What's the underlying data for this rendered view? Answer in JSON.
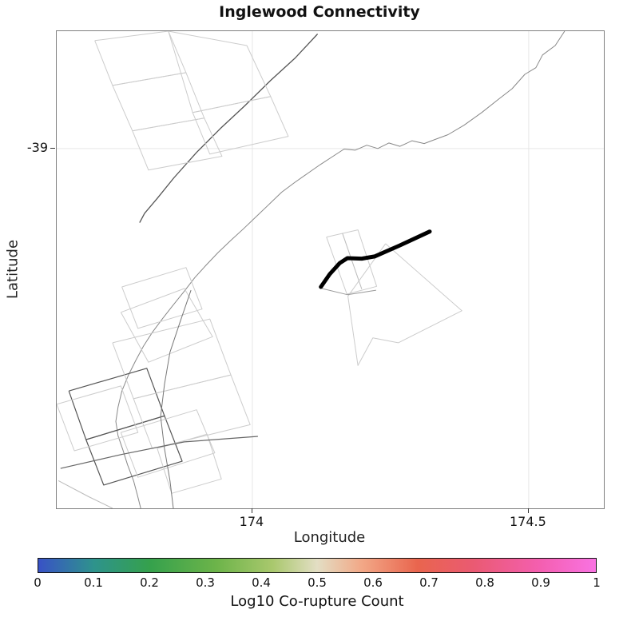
{
  "chart_data": {
    "type": "line",
    "title": "Inglewood Connectivity",
    "xlabel": "Longitude",
    "ylabel": "Latitude",
    "xlim": [
      173.646,
      174.636
    ],
    "ylim": [
      -39.65,
      -38.788
    ],
    "grid": true,
    "xticks": [
      {
        "value": 174,
        "label": "174"
      },
      {
        "value": 174.5,
        "label": "174.5"
      }
    ],
    "yticks": [
      {
        "value": -39,
        "label": "-39"
      }
    ],
    "traces": [
      {
        "name": "fault-trace-northwest",
        "color": "#555555",
        "width": 1.3,
        "points": [
          [
            174.118,
            -38.793
          ],
          [
            174.077,
            -38.837
          ],
          [
            174.033,
            -38.877
          ],
          [
            173.986,
            -38.923
          ],
          [
            173.942,
            -38.964
          ],
          [
            173.899,
            -39.007
          ],
          [
            173.858,
            -39.053
          ],
          [
            173.828,
            -39.09
          ],
          [
            173.805,
            -39.117
          ],
          [
            173.796,
            -39.134
          ]
        ]
      },
      {
        "name": "fault-outline",
        "color": "#cccccc",
        "width": 1,
        "points": [
          [
            173.715,
            -38.805
          ],
          [
            173.848,
            -38.788
          ],
          [
            173.88,
            -38.863
          ],
          [
            173.747,
            -38.886
          ],
          [
            173.715,
            -38.805
          ]
        ]
      },
      {
        "name": "fault-outline",
        "color": "#cccccc",
        "width": 1,
        "points": [
          [
            173.747,
            -38.886
          ],
          [
            173.88,
            -38.863
          ],
          [
            173.913,
            -38.945
          ],
          [
            173.783,
            -38.968
          ],
          [
            173.747,
            -38.886
          ]
        ]
      },
      {
        "name": "fault-outline",
        "color": "#cccccc",
        "width": 1,
        "points": [
          [
            173.783,
            -38.968
          ],
          [
            173.913,
            -38.945
          ],
          [
            173.945,
            -39.014
          ],
          [
            173.812,
            -39.039
          ],
          [
            173.783,
            -38.968
          ]
        ]
      },
      {
        "name": "fault-outline",
        "color": "#cccccc",
        "width": 1,
        "points": [
          [
            173.848,
            -38.788
          ],
          [
            173.99,
            -38.814
          ],
          [
            174.033,
            -38.906
          ],
          [
            173.892,
            -38.935
          ],
          [
            173.848,
            -38.788
          ]
        ]
      },
      {
        "name": "fault-outline",
        "color": "#cccccc",
        "width": 1,
        "points": [
          [
            173.892,
            -38.935
          ],
          [
            174.033,
            -38.906
          ],
          [
            174.065,
            -38.978
          ],
          [
            173.923,
            -39.01
          ],
          [
            173.892,
            -38.935
          ]
        ]
      },
      {
        "name": "fault-trace-long",
        "color": "#888888",
        "width": 1,
        "points": [
          [
            174.565,
            -38.788
          ],
          [
            174.548,
            -38.814
          ],
          [
            174.525,
            -38.831
          ],
          [
            174.513,
            -38.854
          ],
          [
            174.493,
            -38.866
          ],
          [
            174.47,
            -38.892
          ],
          [
            174.444,
            -38.912
          ],
          [
            174.415,
            -38.935
          ],
          [
            174.383,
            -38.958
          ],
          [
            174.354,
            -38.975
          ],
          [
            174.332,
            -38.983
          ],
          [
            174.311,
            -38.991
          ],
          [
            174.289,
            -38.986
          ],
          [
            174.267,
            -38.996
          ],
          [
            174.247,
            -38.99
          ],
          [
            174.227,
            -39.0
          ],
          [
            174.207,
            -38.994
          ],
          [
            174.186,
            -39.003
          ],
          [
            174.166,
            -39.001
          ],
          [
            174.146,
            -39.014
          ],
          [
            174.123,
            -39.029
          ],
          [
            174.1,
            -39.045
          ],
          [
            174.077,
            -39.061
          ],
          [
            174.053,
            -39.079
          ],
          [
            174.03,
            -39.101
          ],
          [
            174.007,
            -39.123
          ],
          [
            173.984,
            -39.145
          ],
          [
            173.961,
            -39.166
          ],
          [
            173.938,
            -39.188
          ],
          [
            173.916,
            -39.211
          ],
          [
            173.896,
            -39.233
          ],
          [
            173.876,
            -39.259
          ],
          [
            173.855,
            -39.285
          ],
          [
            173.837,
            -39.308
          ],
          [
            173.819,
            -39.332
          ],
          [
            173.803,
            -39.357
          ],
          [
            173.789,
            -39.383
          ],
          [
            173.776,
            -39.409
          ],
          [
            173.764,
            -39.438
          ],
          [
            173.757,
            -39.467
          ],
          [
            173.753,
            -39.493
          ],
          [
            173.757,
            -39.519
          ],
          [
            173.766,
            -39.545
          ],
          [
            173.774,
            -39.571
          ],
          [
            173.785,
            -39.6
          ],
          [
            173.792,
            -39.626
          ],
          [
            173.798,
            -39.65
          ]
        ]
      },
      {
        "name": "fault-outline",
        "color": "#cccccc",
        "width": 1,
        "points": [
          [
            174.134,
            -39.16
          ],
          [
            174.191,
            -39.147
          ],
          [
            174.225,
            -39.249
          ],
          [
            174.171,
            -39.263
          ],
          [
            174.134,
            -39.16
          ]
        ]
      },
      {
        "name": "fault-trace",
        "color": "#bbbbbb",
        "width": 1,
        "points": [
          [
            174.163,
            -39.153
          ],
          [
            174.198,
            -39.254
          ]
        ]
      },
      {
        "name": "fault-outline",
        "color": "#cccccc",
        "width": 1,
        "points": [
          [
            174.241,
            -39.172
          ],
          [
            174.379,
            -39.293
          ],
          [
            174.264,
            -39.351
          ],
          [
            174.218,
            -39.342
          ],
          [
            174.191,
            -39.392
          ],
          [
            174.173,
            -39.267
          ],
          [
            174.241,
            -39.172
          ]
        ]
      },
      {
        "name": "fault-trace",
        "color": "#999999",
        "width": 1,
        "points": [
          [
            174.126,
            -39.253
          ],
          [
            174.172,
            -39.264
          ],
          [
            174.224,
            -39.256
          ]
        ]
      },
      {
        "name": "fault-outline-dark",
        "color": "#555555",
        "width": 1.2,
        "points": [
          [
            173.668,
            -39.438
          ],
          [
            173.809,
            -39.397
          ],
          [
            173.841,
            -39.483
          ],
          [
            173.699,
            -39.526
          ],
          [
            173.668,
            -39.438
          ]
        ]
      },
      {
        "name": "fault-outline-dark",
        "color": "#555555",
        "width": 1.2,
        "points": [
          [
            173.699,
            -39.526
          ],
          [
            173.841,
            -39.483
          ],
          [
            173.873,
            -39.565
          ],
          [
            173.731,
            -39.608
          ],
          [
            173.699,
            -39.526
          ]
        ]
      },
      {
        "name": "fault-outline",
        "color": "#cccccc",
        "width": 1,
        "points": [
          [
            173.747,
            -39.351
          ],
          [
            173.923,
            -39.308
          ],
          [
            173.961,
            -39.409
          ],
          [
            173.785,
            -39.452
          ],
          [
            173.747,
            -39.351
          ]
        ]
      },
      {
        "name": "fault-outline",
        "color": "#cccccc",
        "width": 1,
        "points": [
          [
            173.785,
            -39.452
          ],
          [
            173.961,
            -39.409
          ],
          [
            173.996,
            -39.499
          ],
          [
            173.819,
            -39.542
          ],
          [
            173.785,
            -39.452
          ]
        ]
      },
      {
        "name": "fault-outline",
        "color": "#cccccc",
        "width": 1,
        "points": [
          [
            173.762,
            -39.296
          ],
          [
            173.877,
            -39.253
          ],
          [
            173.928,
            -39.34
          ],
          [
            173.812,
            -39.386
          ],
          [
            173.762,
            -39.296
          ]
        ]
      },
      {
        "name": "fault-outline",
        "color": "#cccccc",
        "width": 1,
        "points": [
          [
            173.646,
            -39.462
          ],
          [
            173.762,
            -39.429
          ],
          [
            173.793,
            -39.513
          ],
          [
            173.678,
            -39.546
          ],
          [
            173.646,
            -39.462
          ]
        ]
      },
      {
        "name": "fault-outline",
        "color": "#cccccc",
        "width": 1,
        "points": [
          [
            173.762,
            -39.513
          ],
          [
            173.899,
            -39.472
          ],
          [
            173.932,
            -39.55
          ],
          [
            173.793,
            -39.594
          ],
          [
            173.762,
            -39.513
          ]
        ]
      },
      {
        "name": "fault-outline",
        "color": "#cccccc",
        "width": 1,
        "points": [
          [
            173.828,
            -39.542
          ],
          [
            173.918,
            -39.516
          ],
          [
            173.944,
            -39.597
          ],
          [
            173.854,
            -39.623
          ],
          [
            173.828,
            -39.542
          ]
        ]
      },
      {
        "name": "fault-outline",
        "color": "#cccccc",
        "width": 1,
        "points": [
          [
            173.764,
            -39.25
          ],
          [
            173.88,
            -39.215
          ],
          [
            173.909,
            -39.29
          ],
          [
            173.793,
            -39.325
          ],
          [
            173.764,
            -39.25
          ]
        ]
      },
      {
        "name": "fault-trace-dark",
        "color": "#666666",
        "width": 1.2,
        "points": [
          [
            173.653,
            -39.578
          ],
          [
            173.762,
            -39.553
          ],
          [
            173.877,
            -39.53
          ],
          [
            174.01,
            -39.52
          ]
        ]
      },
      {
        "name": "fault-trace-dark",
        "color": "#777777",
        "width": 1,
        "points": [
          [
            173.889,
            -39.256
          ],
          [
            173.87,
            -39.311
          ],
          [
            173.851,
            -39.368
          ],
          [
            173.841,
            -39.426
          ],
          [
            173.834,
            -39.484
          ],
          [
            173.841,
            -39.542
          ],
          [
            173.851,
            -39.6
          ],
          [
            173.857,
            -39.65
          ]
        ]
      },
      {
        "name": "fault-trace",
        "color": "#bbbbbb",
        "width": 1,
        "points": [
          [
            173.649,
            -39.6
          ],
          [
            173.704,
            -39.629
          ],
          [
            173.747,
            -39.65
          ]
        ]
      }
    ],
    "highlight": {
      "name": "co-rupture-fault-segment",
      "color": "#000000",
      "width": 5,
      "points": [
        [
          174.124,
          -39.25
        ],
        [
          174.14,
          -39.227
        ],
        [
          174.158,
          -39.207
        ],
        [
          174.172,
          -39.198
        ],
        [
          174.198,
          -39.199
        ],
        [
          174.221,
          -39.195
        ],
        [
          174.267,
          -39.175
        ],
        [
          174.321,
          -39.15
        ]
      ]
    },
    "colorbar": {
      "label": "Log10 Co-rupture Count",
      "min": 0,
      "max": 1,
      "ticks": [
        "0",
        "0.1",
        "0.2",
        "0.3",
        "0.4",
        "0.5",
        "0.6",
        "0.7",
        "0.8",
        "0.9",
        "1"
      ],
      "gradient": [
        {
          "pos": 0.0,
          "color": "#3952c6"
        },
        {
          "pos": 0.1,
          "color": "#2e938c"
        },
        {
          "pos": 0.2,
          "color": "#35a14c"
        },
        {
          "pos": 0.32,
          "color": "#6db44a"
        },
        {
          "pos": 0.42,
          "color": "#a9c86d"
        },
        {
          "pos": 0.5,
          "color": "#e3dec4"
        },
        {
          "pos": 0.58,
          "color": "#f2a887"
        },
        {
          "pos": 0.68,
          "color": "#e9654e"
        },
        {
          "pos": 0.78,
          "color": "#ea5a72"
        },
        {
          "pos": 0.9,
          "color": "#f45fb0"
        },
        {
          "pos": 1.0,
          "color": "#f973e2"
        }
      ]
    }
  }
}
